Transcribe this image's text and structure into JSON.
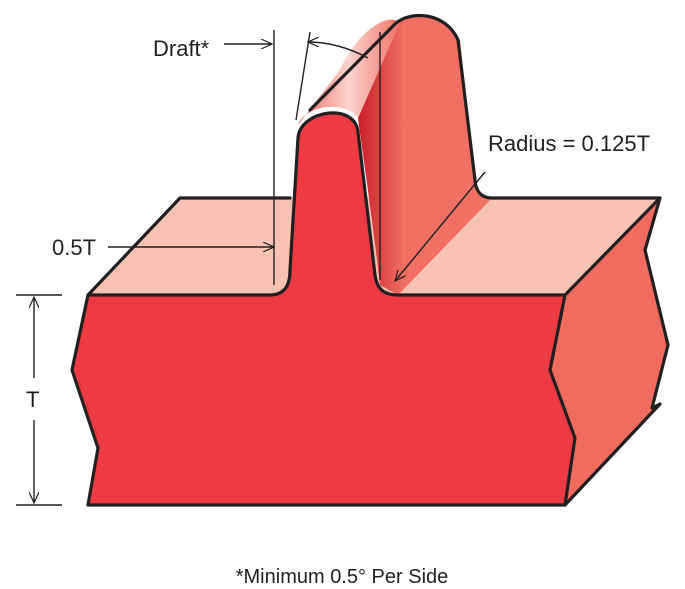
{
  "labels": {
    "draft": "Draft*",
    "radius": "Radius = 0.125T",
    "half_t": "0.5T",
    "thickness": "T"
  },
  "footnote": "*Minimum 0.5° Per Side",
  "colors": {
    "front_face": "#ee3a43",
    "top_face": "#f9c3b3",
    "side_face": "#f06c5f",
    "rib_side": "#f17063",
    "outline": "#231f20"
  }
}
